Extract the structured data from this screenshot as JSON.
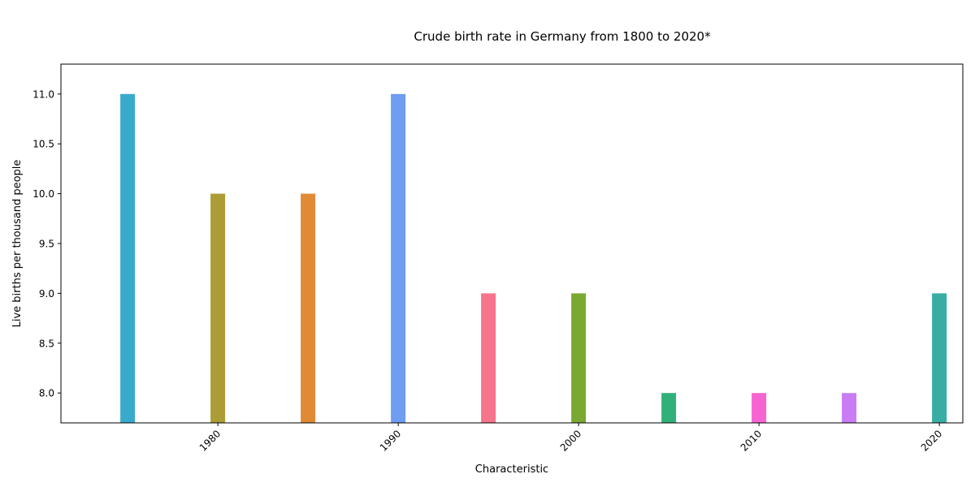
{
  "chart_data": {
    "type": "bar",
    "title": "Crude birth rate in Germany from 1800 to 2020*",
    "xlabel": "Characteristic",
    "ylabel": "Live births per thousand people",
    "x": [
      1975,
      1980,
      1985,
      1990,
      1995,
      2000,
      2005,
      2010,
      2015,
      2020
    ],
    "values": [
      11,
      10,
      10,
      11,
      9,
      9,
      8,
      8,
      8,
      9
    ],
    "colors": [
      "#3aaacc",
      "#ac9c35",
      "#e08a36",
      "#6e9df2",
      "#f7758c",
      "#7aa933",
      "#32b07a",
      "#f664d2",
      "#c97cf4",
      "#38ada3"
    ],
    "xlim": [
      1971.3,
      2021.3
    ],
    "ylim": [
      7.7,
      11.3
    ],
    "xticks": [
      1980,
      1990,
      2000,
      2010,
      2020
    ],
    "xtick_labels": [
      "1980",
      "1990",
      "2000",
      "2010",
      "2020"
    ],
    "yticks": [
      8.0,
      8.5,
      9.0,
      9.5,
      10.0,
      10.5,
      11.0
    ],
    "ytick_labels": [
      "8.0",
      "8.5",
      "9.0",
      "9.5",
      "10.0",
      "10.5",
      "11.0"
    ],
    "grid": false,
    "legend": "none"
  }
}
